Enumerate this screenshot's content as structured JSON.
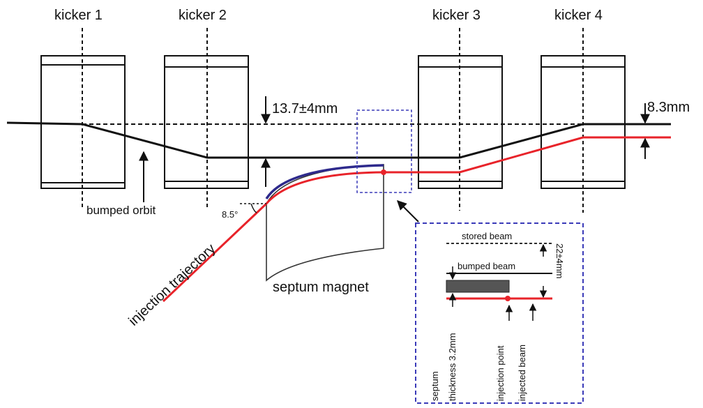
{
  "kickers": [
    "kicker 1",
    "kicker 2",
    "kicker 3",
    "kicker 4"
  ],
  "labels": {
    "bump_height": "13.7±4mm",
    "offset_right": "8.3mm",
    "bumped_orbit": "bumped orbit",
    "injection_trajectory": "injection trajectory",
    "septum_magnet": "septum magnet",
    "angle": "8.5°"
  },
  "inset": {
    "stored_beam": "stored beam",
    "bumped_beam": "bumped beam",
    "distance": "22±4mm",
    "septum": "septum",
    "thickness": "thickness 3.2mm",
    "injection_point": "injection point",
    "injected_beam": "injected beam"
  },
  "colors": {
    "orbit": "#111111",
    "injected": "#e8232a",
    "septum_edge": "#2e2a8c",
    "inset_border": "#3a3ab8"
  }
}
